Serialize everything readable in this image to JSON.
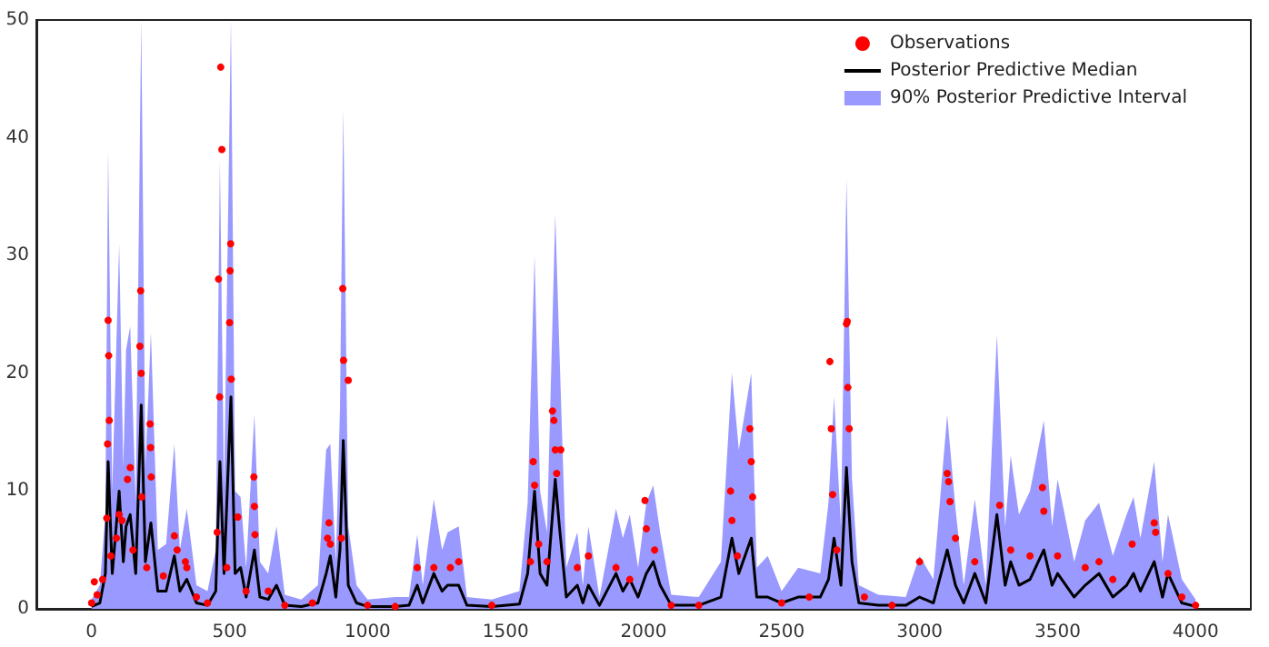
{
  "chart_data": {
    "type": "line",
    "xlim": [
      -200,
      4200
    ],
    "xticks": [
      0,
      500,
      1000,
      1500,
      2000,
      2500,
      3000,
      3500,
      4000
    ],
    "ylim": [
      0,
      50
    ],
    "yticks": [
      0,
      10,
      20,
      30,
      40,
      50
    ],
    "grid": false,
    "legend": "top right",
    "series": [
      {
        "name": "Observations",
        "type": "scatter",
        "marker": "circle",
        "color": "#ff0000",
        "x": [
          0,
          10,
          20,
          40,
          55,
          58,
          60,
          62,
          64,
          70,
          90,
          100,
          110,
          130,
          140,
          150,
          175,
          178,
          180,
          182,
          200,
          212,
          214,
          216,
          260,
          300,
          310,
          340,
          345,
          380,
          420,
          455,
          460,
          464,
          468,
          472,
          490,
          500,
          502,
          504,
          506,
          530,
          560,
          588,
          590,
          592,
          640,
          700,
          800,
          855,
          860,
          865,
          905,
          910,
          913,
          930,
          1000,
          1100,
          1180,
          1240,
          1300,
          1330,
          1450,
          1590,
          1600,
          1605,
          1620,
          1650,
          1670,
          1675,
          1680,
          1685,
          1700,
          1760,
          1800,
          1900,
          1950,
          2005,
          2010,
          2040,
          2100,
          2200,
          2315,
          2320,
          2340,
          2385,
          2390,
          2395,
          2500,
          2600,
          2675,
          2680,
          2685,
          2700,
          2735,
          2738,
          2740,
          2745,
          2800,
          2900,
          3000,
          3100,
          3105,
          3110,
          3130,
          3200,
          3290,
          3330,
          3400,
          3445,
          3450,
          3500,
          3600,
          3650,
          3700,
          3770,
          3850,
          3855,
          3900,
          3950,
          4000
        ],
        "values": [
          0.5,
          2.3,
          1.2,
          2.5,
          7.7,
          14,
          24.5,
          21.5,
          16,
          4.5,
          6,
          8,
          7.5,
          11,
          12,
          5,
          22.3,
          27,
          20,
          9.5,
          3.5,
          15.7,
          13.7,
          11.2,
          2.8,
          6.2,
          5,
          4,
          3.5,
          1,
          0.5,
          6.5,
          28,
          18,
          46,
          39,
          3.5,
          24.3,
          28.7,
          31,
          19.5,
          7.8,
          1.5,
          11.2,
          8.7,
          6.3,
          1.5,
          0.3,
          0.5,
          6,
          7.3,
          5.5,
          6,
          27.2,
          21.1,
          19.4,
          0.3,
          0.2,
          3.5,
          3.5,
          3.5,
          4,
          0.3,
          4,
          12.5,
          10.5,
          5.5,
          4,
          16.8,
          16,
          13.5,
          11.5,
          13.5,
          3.5,
          4.5,
          3.5,
          2.5,
          9.2,
          6.8,
          5,
          0.3,
          0.3,
          10,
          7.5,
          4.5,
          15.3,
          12.5,
          9.5,
          0.5,
          1,
          21,
          15.3,
          9.7,
          5,
          24.2,
          24.4,
          18.8,
          15.3,
          1,
          0.3,
          4,
          11.5,
          10.8,
          9.1,
          6,
          4,
          8.8,
          5,
          4.5,
          10.3,
          8.3,
          4.5,
          3.5,
          4,
          2.5,
          5.5,
          7.3,
          6.5,
          3,
          1,
          0.3
        ]
      },
      {
        "name": "Posterior Predictive Median",
        "marker": "none",
        "line_style": "solid",
        "color": "#000000",
        "x": [
          0,
          30,
          50,
          60,
          75,
          100,
          115,
          125,
          140,
          160,
          180,
          195,
          215,
          240,
          270,
          300,
          320,
          345,
          380,
          420,
          450,
          465,
          480,
          505,
          520,
          540,
          560,
          590,
          610,
          640,
          670,
          700,
          760,
          820,
          850,
          865,
          885,
          900,
          912,
          930,
          960,
          1000,
          1100,
          1150,
          1180,
          1200,
          1240,
          1270,
          1290,
          1330,
          1360,
          1450,
          1550,
          1580,
          1605,
          1625,
          1650,
          1680,
          1695,
          1720,
          1760,
          1780,
          1800,
          1840,
          1900,
          1925,
          1950,
          1980,
          2010,
          2035,
          2060,
          2100,
          2200,
          2280,
          2320,
          2345,
          2390,
          2410,
          2450,
          2500,
          2560,
          2640,
          2670,
          2690,
          2715,
          2735,
          2755,
          2780,
          2850,
          2950,
          3000,
          3050,
          3100,
          3130,
          3160,
          3200,
          3240,
          3280,
          3310,
          3330,
          3360,
          3400,
          3450,
          3480,
          3500,
          3560,
          3600,
          3650,
          3700,
          3750,
          3775,
          3800,
          3850,
          3880,
          3900,
          3950,
          4000
        ],
        "values": [
          0.2,
          0.5,
          3,
          12.5,
          3,
          10,
          4,
          7,
          8,
          3,
          17.3,
          4,
          7.3,
          1.5,
          1.5,
          4.5,
          1.5,
          2.5,
          0.5,
          0.3,
          1.5,
          12.5,
          3,
          18,
          3,
          3.5,
          1,
          5,
          1,
          0.8,
          2,
          0.3,
          0.2,
          0.5,
          3,
          4.5,
          1,
          5,
          14.3,
          2,
          0.5,
          0.2,
          0.2,
          0.3,
          2,
          0.5,
          3,
          1.5,
          2,
          2,
          0.3,
          0.2,
          0.4,
          3,
          10,
          3,
          2,
          11,
          7,
          1,
          2,
          0.5,
          2,
          0.3,
          3,
          1.5,
          2.5,
          1,
          3,
          4,
          2,
          0.3,
          0.3,
          1,
          6,
          3,
          6,
          1,
          1,
          0.5,
          1,
          1,
          2.5,
          6,
          2,
          12,
          4,
          0.5,
          0.3,
          0.3,
          1,
          0.5,
          5,
          2,
          0.5,
          3,
          0.5,
          8,
          2,
          4,
          2,
          2.5,
          5,
          2,
          3,
          1,
          2,
          3,
          1,
          2,
          3,
          1.5,
          4,
          1,
          3,
          0.5,
          0.2
        ]
      },
      {
        "name": "90% Posterior Predictive Interval",
        "type": "area",
        "color": "#9999ff",
        "x": [
          0,
          30,
          50,
          60,
          75,
          100,
          115,
          125,
          140,
          160,
          180,
          195,
          215,
          240,
          270,
          300,
          320,
          345,
          380,
          420,
          450,
          465,
          480,
          505,
          520,
          540,
          560,
          590,
          610,
          640,
          670,
          700,
          760,
          820,
          850,
          865,
          885,
          900,
          912,
          930,
          960,
          1000,
          1100,
          1150,
          1180,
          1200,
          1240,
          1270,
          1290,
          1330,
          1360,
          1450,
          1550,
          1580,
          1605,
          1625,
          1650,
          1680,
          1695,
          1720,
          1760,
          1780,
          1800,
          1840,
          1900,
          1925,
          1950,
          1980,
          2010,
          2035,
          2060,
          2100,
          2200,
          2280,
          2320,
          2345,
          2390,
          2410,
          2450,
          2500,
          2560,
          2640,
          2670,
          2690,
          2715,
          2735,
          2755,
          2780,
          2850,
          2950,
          3000,
          3050,
          3100,
          3130,
          3160,
          3200,
          3240,
          3280,
          3310,
          3330,
          3360,
          3400,
          3450,
          3480,
          3500,
          3560,
          3600,
          3650,
          3700,
          3750,
          3775,
          3800,
          3850,
          3880,
          3900,
          3950,
          4000
        ],
        "values": [
          0.8,
          2,
          8,
          39,
          10,
          31,
          12,
          22,
          24,
          9,
          50,
          12,
          23.5,
          5,
          5.5,
          14,
          5,
          8.5,
          2,
          1.5,
          5,
          38,
          10,
          50,
          10,
          9.5,
          3.5,
          16.5,
          4,
          3,
          7,
          1.2,
          0.8,
          2,
          13.5,
          14,
          4,
          17,
          42.5,
          7,
          2,
          0.8,
          1,
          1,
          6.3,
          2,
          9.3,
          5,
          6.5,
          7,
          1,
          0.8,
          1.5,
          9,
          30,
          10,
          6.5,
          33.5,
          22,
          3.5,
          6.5,
          2,
          7,
          1,
          8.5,
          6,
          8,
          3.5,
          9,
          10.5,
          6.5,
          1.2,
          1,
          4,
          20,
          13.5,
          20,
          3.5,
          4.5,
          1.5,
          3.5,
          3,
          9,
          18,
          7,
          36.5,
          11,
          2,
          1.2,
          1,
          4.5,
          2.5,
          16.5,
          8.5,
          2,
          9.3,
          2,
          23.3,
          7,
          13,
          8,
          10,
          16,
          7,
          11,
          4,
          7.5,
          9,
          4.5,
          8,
          9.5,
          6,
          12.5,
          4,
          8,
          2.5,
          0.8
        ]
      }
    ]
  }
}
